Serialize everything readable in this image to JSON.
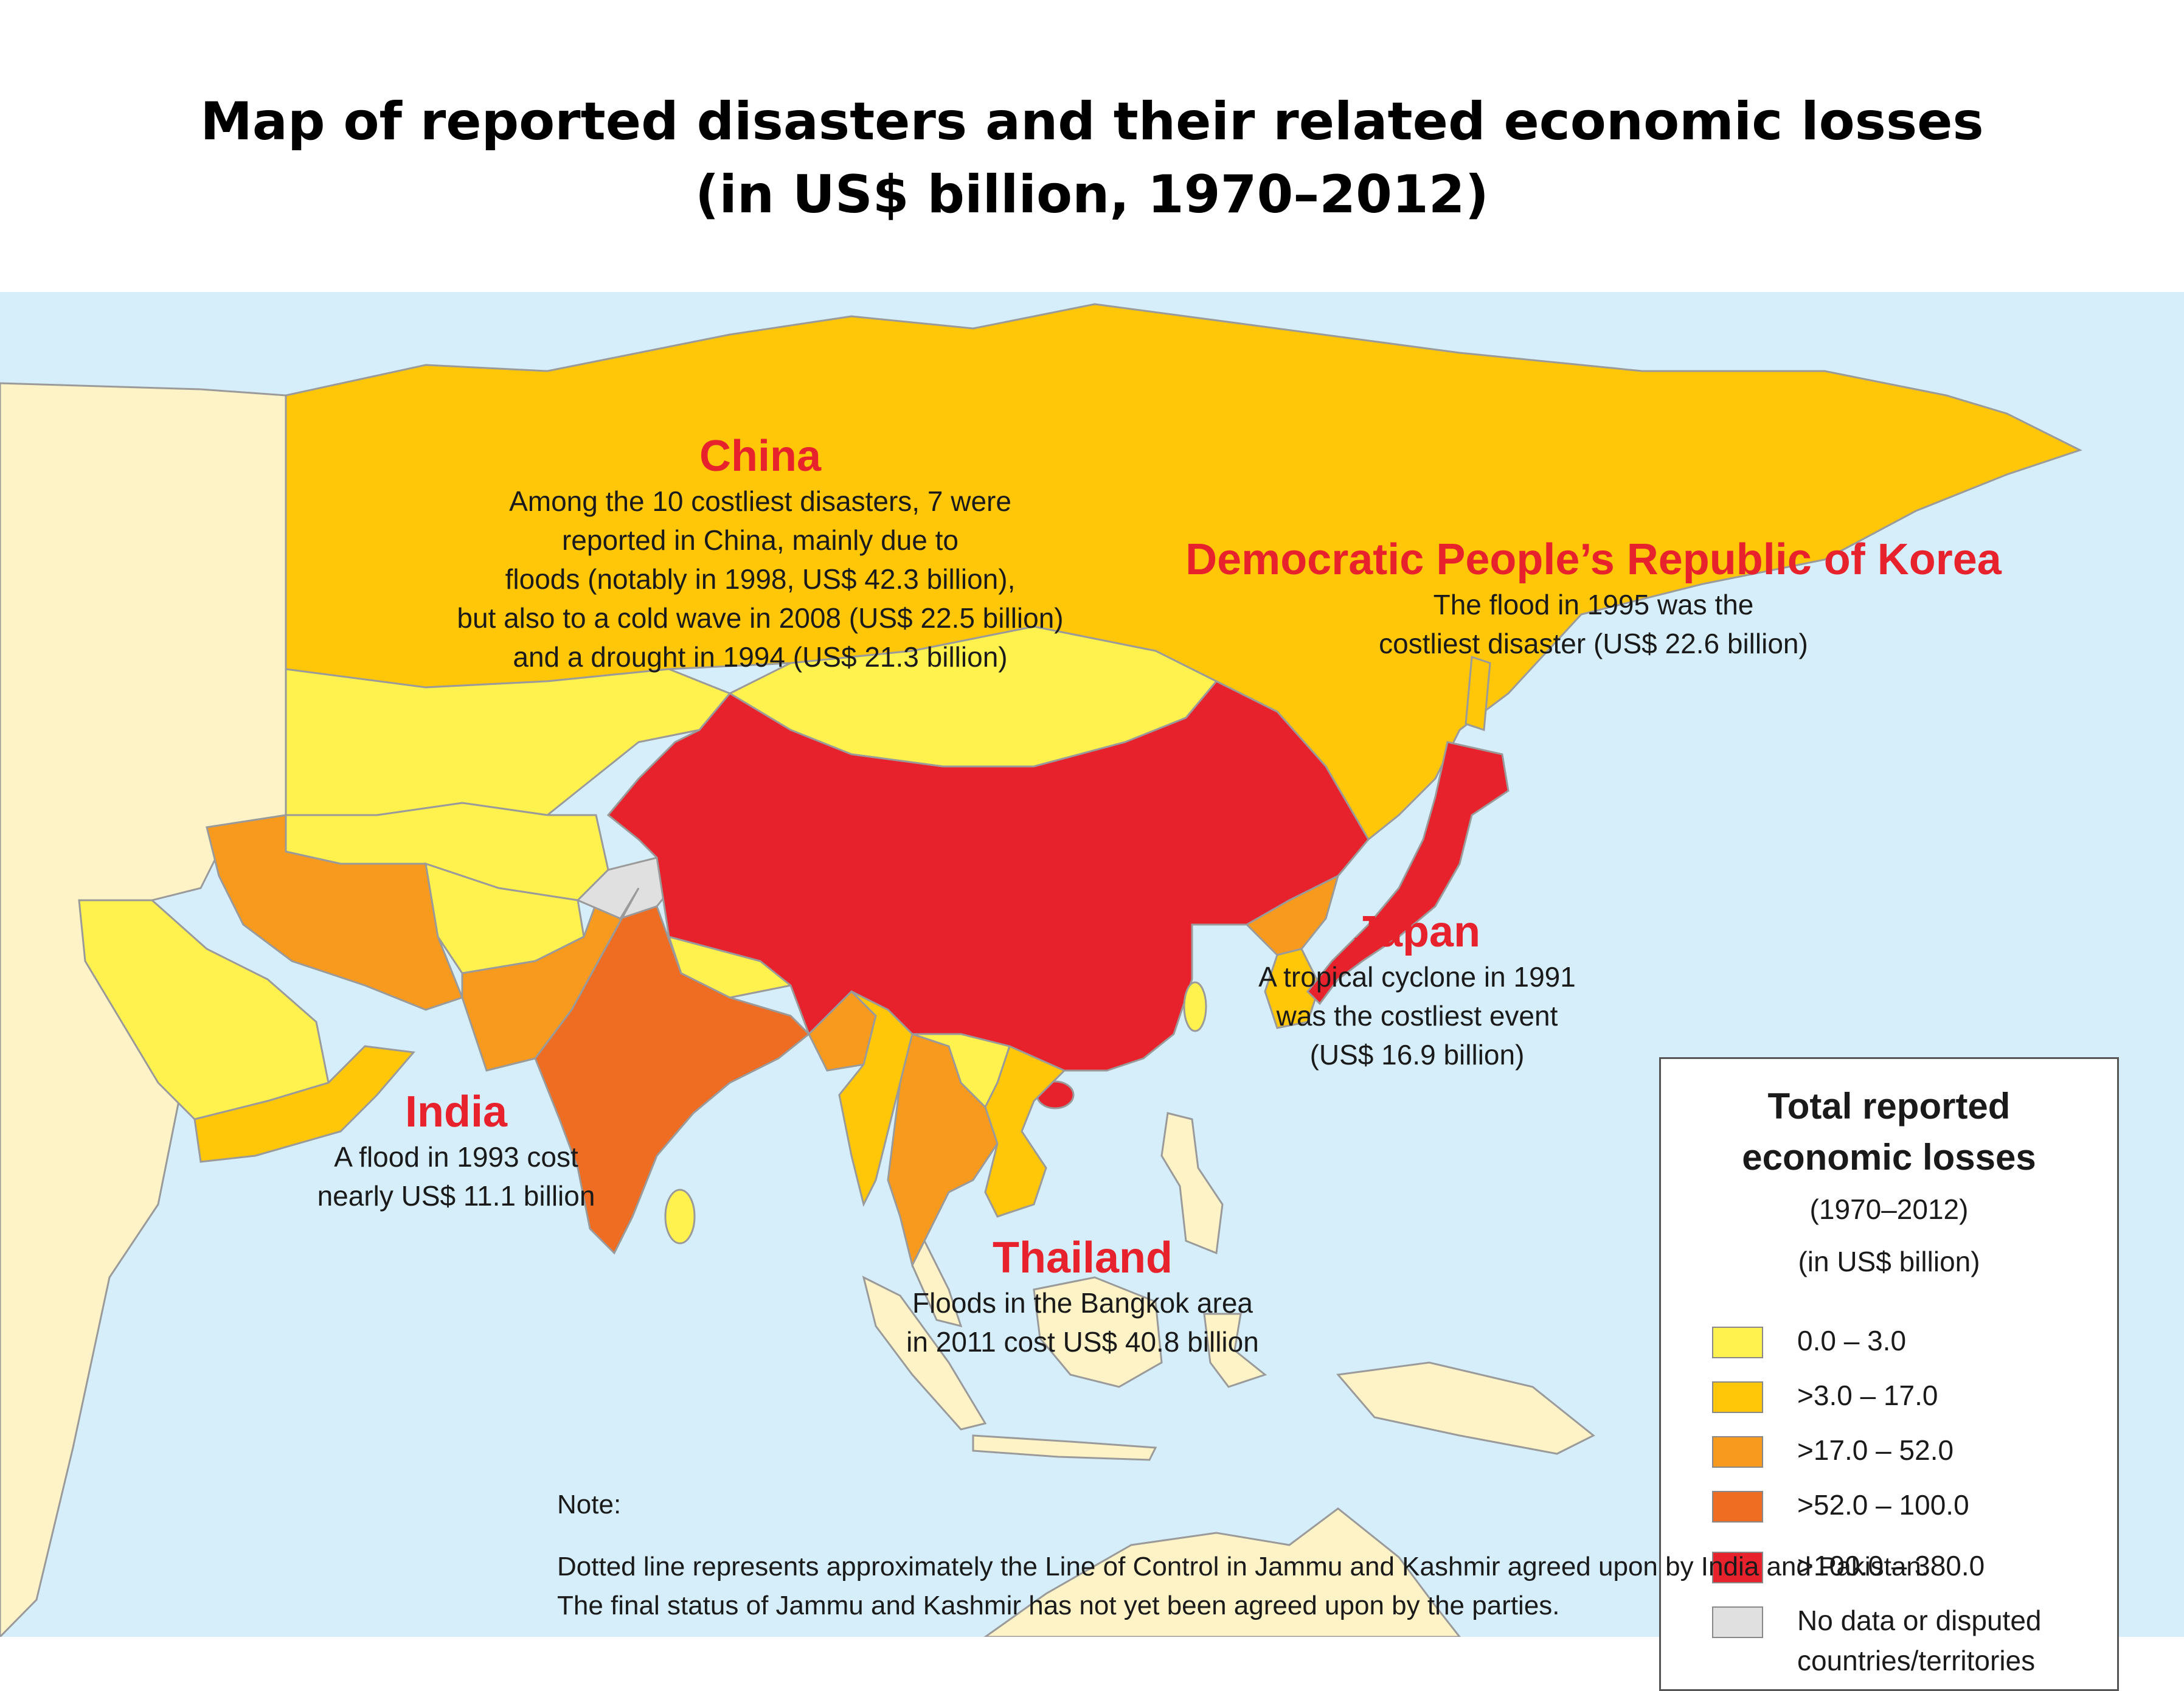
{
  "title": {
    "line1": "Map of reported disasters and their related economic losses",
    "line2": "(in US$ billion, 1970–2012)"
  },
  "colors": {
    "sea": "#d5eef9",
    "coast": "#9a9a9a",
    "cat_0_3": "#fff24f",
    "cat_3_17": "#ffc708",
    "cat_17_52": "#f79a1e",
    "cat_52_100": "#ef6c23",
    "cat_100_380": "#e8222c",
    "no_data": "#e0e0e0",
    "outside_region": "#fdf3c6",
    "callout_title": "#e8222c"
  },
  "callouts": {
    "china": {
      "title": "China",
      "lines": [
        "Among the 10 costliest disasters, 7 were",
        "reported in China, mainly due to",
        "floods (notably in 1998, US$ 42.3 billion),",
        "but also to a cold wave in 2008 (US$ 22.5 billion)",
        "and a drought in 1994 (US$ 21.3 billion)"
      ]
    },
    "dprk": {
      "title": "Democratic People’s Republic of Korea",
      "lines": [
        "The flood in 1995 was the",
        "costliest disaster (US$ 22.6 billion)"
      ]
    },
    "japan": {
      "title": "Japan",
      "lines": [
        "A tropical cyclone in 1991",
        "was the costliest event",
        "(US$ 16.9 billion)"
      ]
    },
    "india": {
      "title": "India",
      "lines": [
        "A flood in 1993 cost",
        "nearly US$ 11.1 billion"
      ]
    },
    "thailand": {
      "title": "Thailand",
      "lines": [
        "Floods in the Bangkok area",
        "in 2011 cost US$ 40.8 billion"
      ]
    }
  },
  "legend": {
    "title_line1": "Total reported",
    "title_line2": "economic losses",
    "period": "(1970–2012)",
    "unit": "(in US$ billion)",
    "items": [
      {
        "label": "0.0 – 3.0",
        "color_key": "cat_0_3"
      },
      {
        "label": ">3.0 – 17.0",
        "color_key": "cat_3_17"
      },
      {
        "label": ">17.0 – 52.0",
        "color_key": "cat_17_52"
      },
      {
        "label": ">52.0 – 100.0",
        "color_key": "cat_52_100"
      },
      {
        "label": ">100.0 – 380.0",
        "color_key": "cat_100_380"
      },
      {
        "label_line1": "No data or disputed",
        "label_line2": "countries/territories",
        "color_key": "no_data"
      }
    ]
  },
  "note": {
    "heading": "Note:",
    "line1": "Dotted line represents approximately the Line of Control in Jammu and Kashmir agreed upon by India and Pakistan.",
    "line2": "The final status of Jammu and Kashmir has not yet been agreed upon by the parties."
  }
}
